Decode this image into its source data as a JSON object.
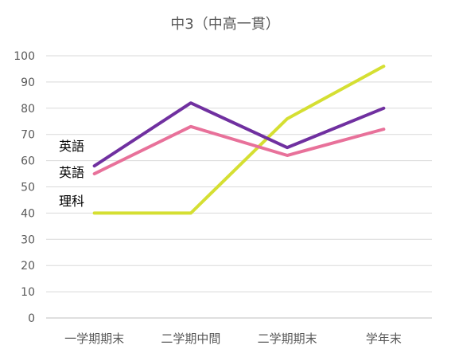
{
  "chart_data": {
    "type": "line",
    "title": "中3（中高一貫）",
    "xlabel": "",
    "ylabel": "",
    "categories": [
      "一学期期末",
      "二学期中間",
      "二学期期末",
      "学年末"
    ],
    "ylim": [
      0,
      100
    ],
    "ytick_step": 10,
    "grid": true,
    "legend": "none",
    "series": [
      {
        "name": "英語",
        "values": [
          58,
          82,
          65,
          80
        ],
        "color": "#7030a0"
      },
      {
        "name": "英語",
        "values": [
          55,
          73,
          62,
          72
        ],
        "color": "#e8719a"
      },
      {
        "name": "理科",
        "values": [
          40,
          40,
          76,
          96
        ],
        "color": "#d5df32"
      }
    ]
  }
}
